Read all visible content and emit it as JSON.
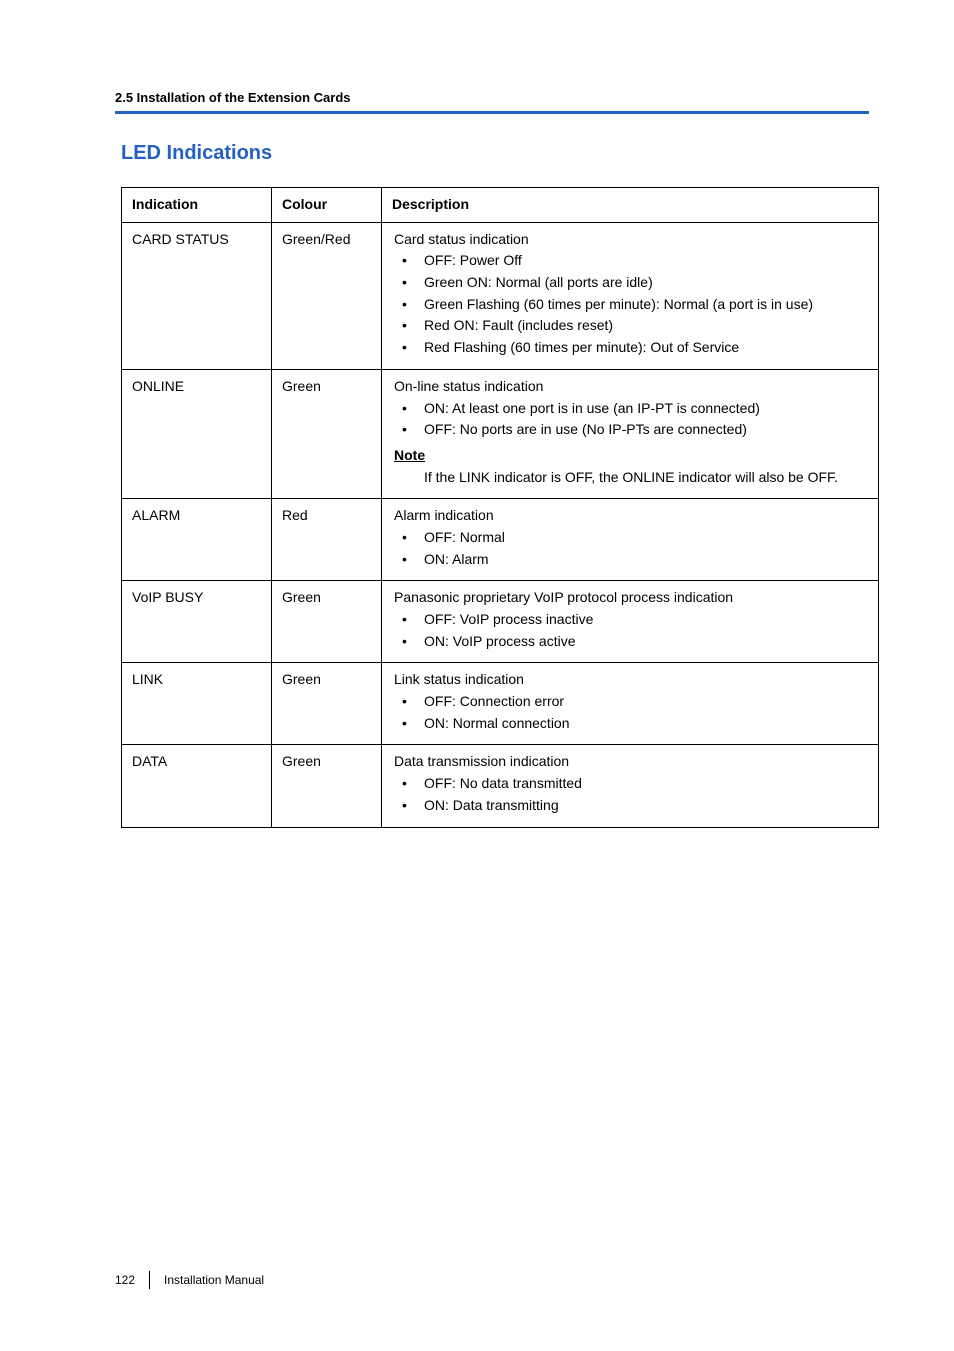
{
  "header": {
    "section_path": "2.5 Installation of the Extension Cards",
    "rule_color": "#2560c4"
  },
  "section": {
    "title": "LED Indications",
    "title_color": "#2560c4"
  },
  "table": {
    "headers": {
      "indication": "Indication",
      "colour": "Colour",
      "description": "Description"
    },
    "rows": [
      {
        "indication": "CARD STATUS",
        "colour": "Green/Red",
        "lead": "Card status indication",
        "bullets": [
          "OFF: Power Off",
          "Green ON: Normal (all ports are idle)",
          "Green Flashing (60 times per minute): Normal (a port is in use)",
          "Red ON: Fault (includes reset)",
          "Red Flashing (60 times per minute): Out of Service"
        ]
      },
      {
        "indication": "ONLINE",
        "colour": "Green",
        "lead": "On-line status indication",
        "bullets": [
          "ON: At least one port is in use (an IP-PT is connected)",
          "OFF: No ports are in use (No IP-PTs are connected)"
        ],
        "note_label": "Note",
        "note_body": "If the LINK indicator is OFF, the ONLINE indicator will also be OFF."
      },
      {
        "indication": "ALARM",
        "colour": "Red",
        "lead": "Alarm indication",
        "bullets": [
          "OFF: Normal",
          "ON: Alarm"
        ]
      },
      {
        "indication": "VoIP BUSY",
        "colour": "Green",
        "lead": "Panasonic proprietary VoIP protocol process indication",
        "bullets": [
          "OFF: VoIP process inactive",
          "ON: VoIP process active"
        ]
      },
      {
        "indication": "LINK",
        "colour": "Green",
        "lead": "Link status indication",
        "bullets": [
          "OFF: Connection error",
          "ON: Normal connection"
        ]
      },
      {
        "indication": "DATA",
        "colour": "Green",
        "lead": "Data transmission indication",
        "bullets": [
          "OFF: No data transmitted",
          "ON: Data transmitting"
        ]
      }
    ]
  },
  "footer": {
    "page_number": "122",
    "doc_title": "Installation Manual"
  }
}
